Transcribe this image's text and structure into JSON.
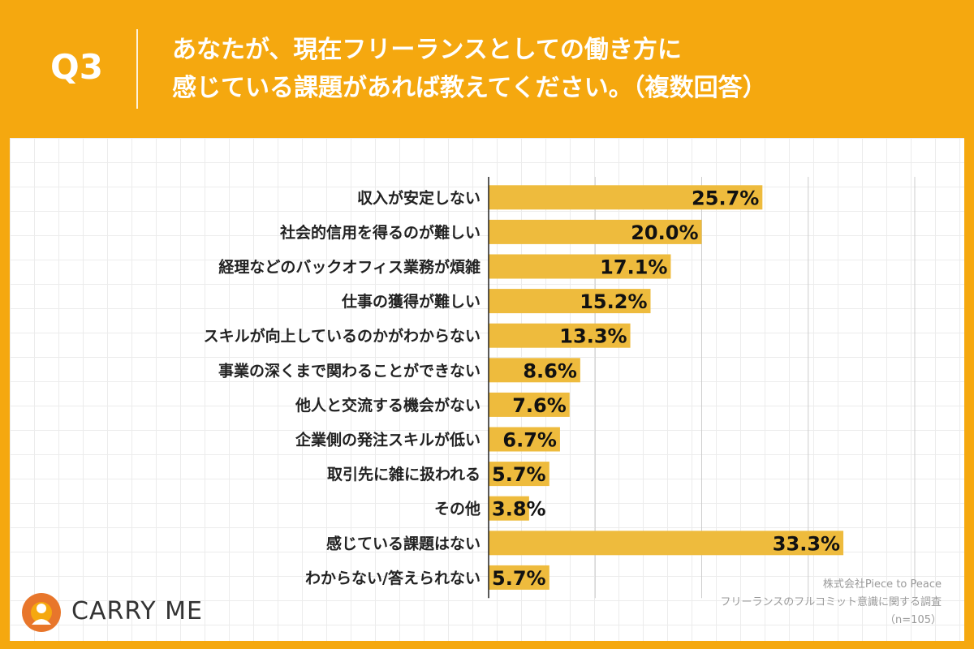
{
  "header": {
    "q_label": "Q3",
    "question_line1": "あなたが、現在フリーランスとしての働き方に",
    "question_line2": "感じている課題があれば教えてください。（複数回答）"
  },
  "brand": {
    "name": "CARRY ME",
    "logo_color": "#E8762B"
  },
  "source": {
    "company": "株式会社Piece to Peace",
    "survey": "フリーランスのフルコミット意識に関する調査",
    "sample": "（n=105）"
  },
  "colors": {
    "background": "#F5A80F",
    "bar": "#EEBB3D",
    "axis": "#222222",
    "grid": "#cccccc"
  },
  "chart_data": {
    "type": "bar",
    "orientation": "horizontal",
    "title": "あなたが、現在フリーランスとしての働き方に感じている課題があれば教えてください。（複数回答）",
    "categories": [
      "収入が安定しない",
      "社会的信用を得るのが難しい",
      "経理などのバックオフィス業務が煩雑",
      "仕事の獲得が難しい",
      "スキルが向上しているのかがわからない",
      "事業の深くまで関わることができない",
      "他人と交流する機会がない",
      "企業側の発注スキルが低い",
      "取引先に雑に扱われる",
      "その他",
      "感じている課題はない",
      "わからない/答えられない"
    ],
    "values": [
      25.7,
      20.0,
      17.1,
      15.2,
      13.3,
      8.6,
      7.6,
      6.7,
      5.7,
      3.8,
      33.3,
      5.7
    ],
    "value_labels": [
      "25.7%",
      "20.0%",
      "17.1%",
      "15.2%",
      "13.3%",
      "8.6%",
      "7.6%",
      "6.7%",
      "5.7%",
      "3.8%",
      "33.3%",
      "5.7%"
    ],
    "unit": "%",
    "xlim": [
      0,
      40
    ],
    "grid": true
  }
}
